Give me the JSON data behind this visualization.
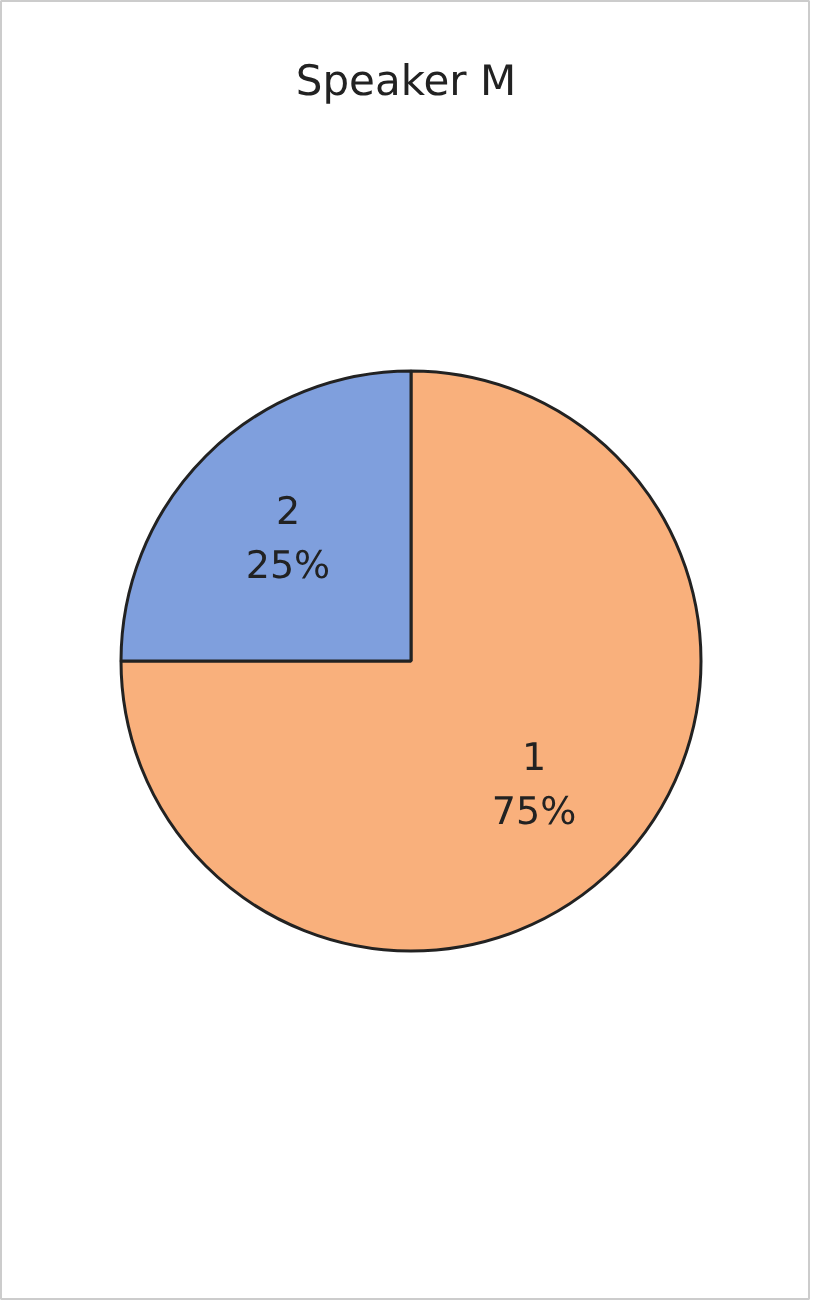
{
  "chart_data": {
    "type": "pie",
    "title": "Speaker M",
    "categories": [
      "1",
      "2"
    ],
    "values": [
      75,
      25
    ],
    "colors": [
      "#f9b07c",
      "#7f9fdd"
    ],
    "value_labels": [
      "75%",
      "25%"
    ]
  }
}
